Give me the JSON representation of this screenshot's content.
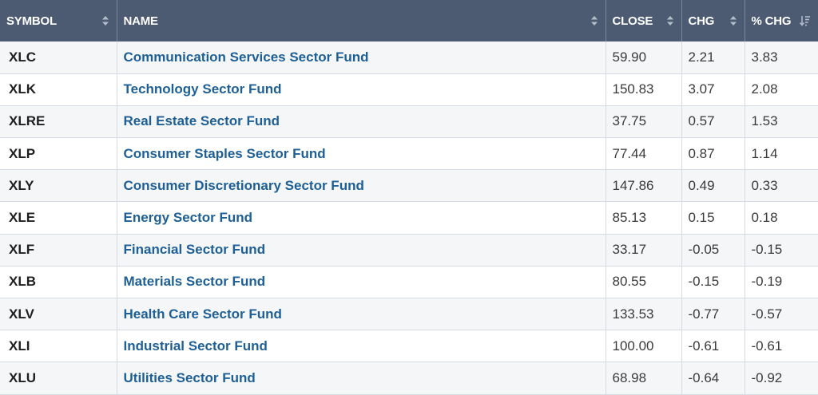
{
  "columns": {
    "symbol": "SYMBOL",
    "name": "NAME",
    "close": "CLOSE",
    "chg": "CHG",
    "pct_chg": "% CHG"
  },
  "icons": {
    "sort": "sort-arrows-icon",
    "sort_active": "sort-descending-icon"
  },
  "colors": {
    "header_bg": "#4d5b72",
    "link": "#1d5f96",
    "row_alt": "#f5f6f8"
  },
  "rows": [
    {
      "symbol": "XLC",
      "name": "Communication Services Sector Fund",
      "close": "59.90",
      "chg": "2.21",
      "pct_chg": "3.83"
    },
    {
      "symbol": "XLK",
      "name": "Technology Sector Fund",
      "close": "150.83",
      "chg": "3.07",
      "pct_chg": "2.08"
    },
    {
      "symbol": "XLRE",
      "name": "Real Estate Sector Fund",
      "close": "37.75",
      "chg": "0.57",
      "pct_chg": "1.53"
    },
    {
      "symbol": "XLP",
      "name": "Consumer Staples Sector Fund",
      "close": "77.44",
      "chg": "0.87",
      "pct_chg": "1.14"
    },
    {
      "symbol": "XLY",
      "name": "Consumer Discretionary Sector Fund",
      "close": "147.86",
      "chg": "0.49",
      "pct_chg": "0.33"
    },
    {
      "symbol": "XLE",
      "name": "Energy Sector Fund",
      "close": "85.13",
      "chg": "0.15",
      "pct_chg": "0.18"
    },
    {
      "symbol": "XLF",
      "name": "Financial Sector Fund",
      "close": "33.17",
      "chg": "-0.05",
      "pct_chg": "-0.15"
    },
    {
      "symbol": "XLB",
      "name": "Materials Sector Fund",
      "close": "80.55",
      "chg": "-0.15",
      "pct_chg": "-0.19"
    },
    {
      "symbol": "XLV",
      "name": "Health Care Sector Fund",
      "close": "133.53",
      "chg": "-0.77",
      "pct_chg": "-0.57"
    },
    {
      "symbol": "XLI",
      "name": "Industrial Sector Fund",
      "close": "100.00",
      "chg": "-0.61",
      "pct_chg": "-0.61"
    },
    {
      "symbol": "XLU",
      "name": "Utilities Sector Fund",
      "close": "68.98",
      "chg": "-0.64",
      "pct_chg": "-0.92"
    }
  ]
}
